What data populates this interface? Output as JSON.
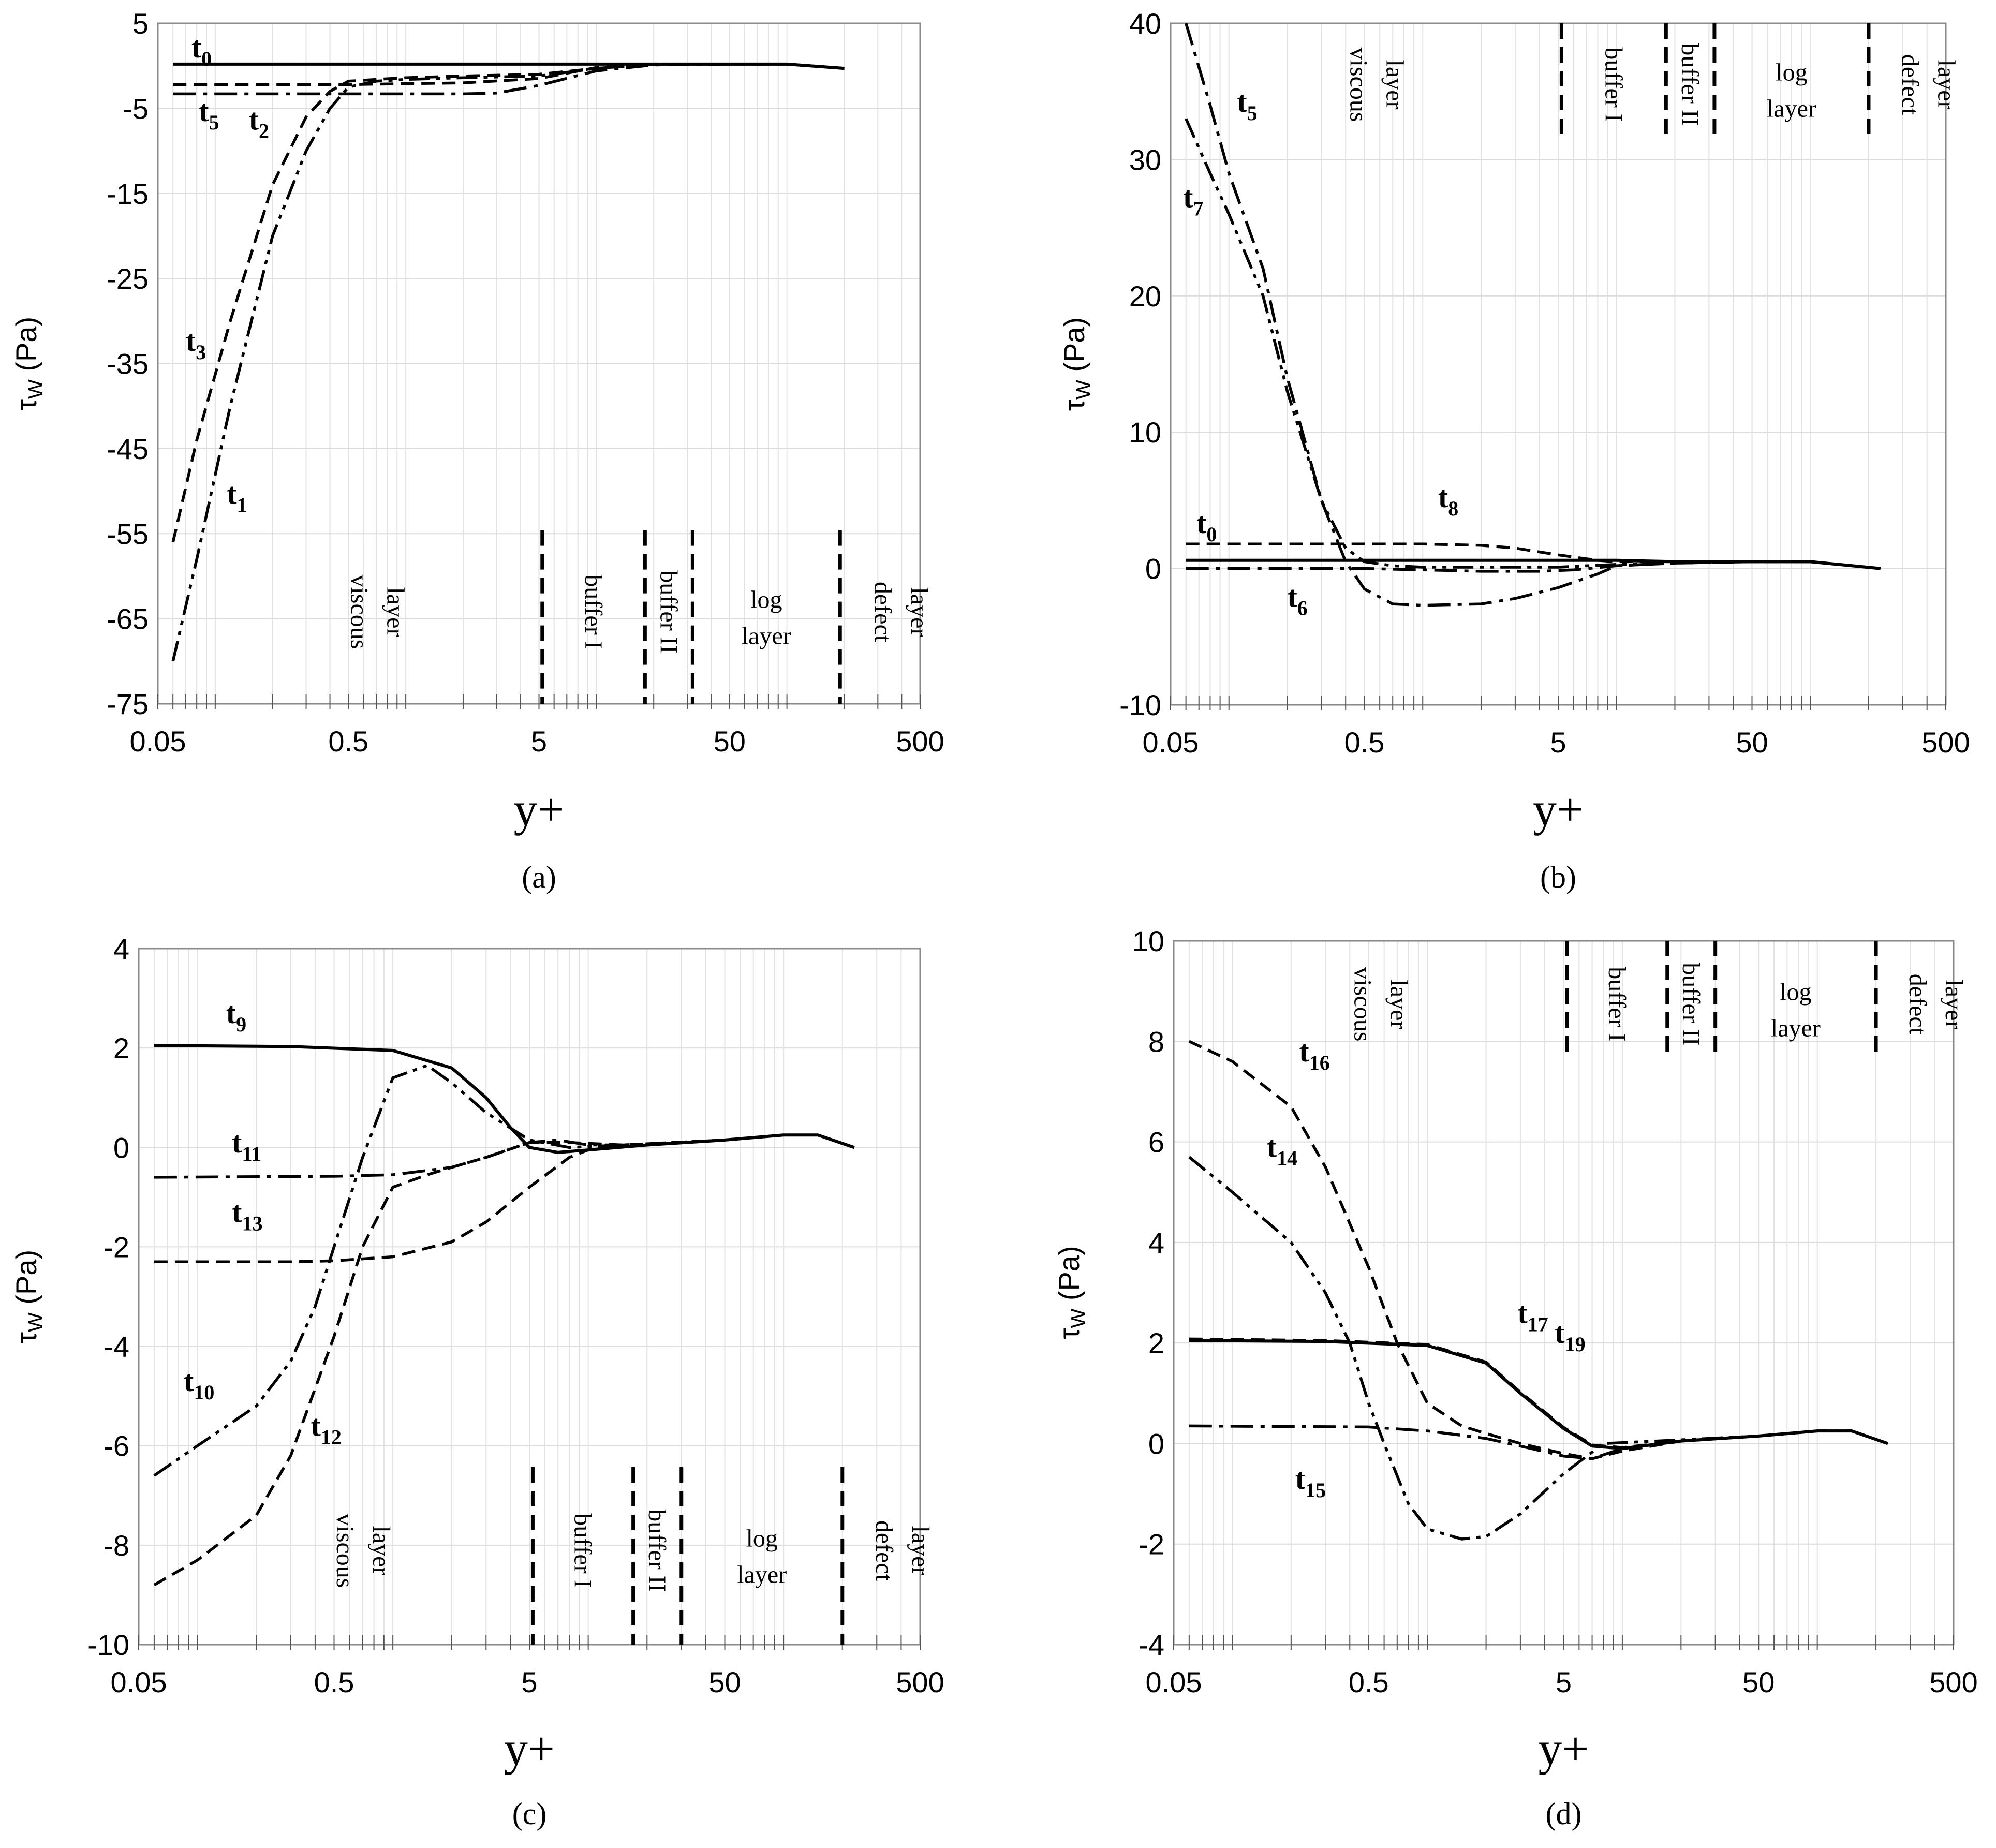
{
  "chart_data": [
    {
      "type": "line",
      "panel_label": "(a)",
      "xscale": "log",
      "xlim": [
        0.05,
        500
      ],
      "ylim": [
        -75,
        5
      ],
      "yticks": [
        5,
        -5,
        -15,
        -25,
        -35,
        -45,
        -55,
        -65,
        -75
      ],
      "xticks": [
        0.05,
        0.5,
        5,
        50,
        500
      ],
      "xtick_labels": [
        "0.05",
        "0.5",
        "5",
        "50",
        "500"
      ],
      "ylabel": "τW (Pa)",
      "ylabel_main": "τ",
      "ylabel_sub": "W",
      "ylabel_unit": " (Pa)",
      "xlabel": "y+",
      "region_dividers": [
        5.2,
        18,
        32,
        190
      ],
      "regions": [
        {
          "line1": "viscous",
          "line2": "layer"
        },
        {
          "line1": "buffer I",
          "line2": ""
        },
        {
          "line1": "buffer II",
          "line2": ""
        },
        {
          "line1": "log",
          "line2": "layer"
        },
        {
          "line1": "defect",
          "line2": "layer"
        }
      ],
      "series": [
        {
          "name": "t0",
          "style": "solid",
          "x": [
            0.06,
            0.5,
            1,
            5,
            10,
            20,
            50,
            100,
            200
          ],
          "y": [
            0.2,
            0.2,
            0.2,
            0.2,
            0.2,
            0.2,
            0.2,
            0.2,
            -0.3
          ]
        },
        {
          "name": "t5",
          "style": "dash",
          "x": [
            0.06,
            0.1,
            0.3,
            0.5,
            1,
            2,
            5,
            10,
            20,
            50,
            100,
            200
          ],
          "y": [
            -2.2,
            -2.2,
            -2.2,
            -2.2,
            -2.1,
            -2.0,
            -1.5,
            -0.2,
            0.2,
            0.2,
            0.2,
            -0.3
          ]
        },
        {
          "name": "t2",
          "style": "dashdot",
          "x": [
            0.06,
            0.1,
            0.3,
            0.5,
            1,
            2,
            3,
            5,
            10,
            20,
            50,
            100,
            200
          ],
          "y": [
            -3.3,
            -3.3,
            -3.3,
            -3.3,
            -3.3,
            -3.3,
            -3.2,
            -2.3,
            -0.6,
            0.1,
            0.2,
            0.2,
            -0.3
          ]
        },
        {
          "name": "t3",
          "style": "dash",
          "x": [
            0.06,
            0.08,
            0.12,
            0.2,
            0.3,
            0.4,
            0.5,
            0.7,
            1,
            2,
            5,
            10,
            20,
            50,
            100,
            200
          ],
          "y": [
            -56,
            -44,
            -30,
            -14,
            -6,
            -3,
            -1.8,
            -1.6,
            -1.4,
            -1.2,
            -1.0,
            -0.3,
            0.2,
            0.2,
            0.2,
            -0.3
          ]
        },
        {
          "name": "t1",
          "style": "dashdotdot",
          "x": [
            0.06,
            0.08,
            0.12,
            0.2,
            0.3,
            0.4,
            0.5,
            0.7,
            1,
            2,
            5,
            10,
            20,
            50,
            100,
            200
          ],
          "y": [
            -70,
            -58,
            -40,
            -20,
            -10,
            -5,
            -2.5,
            -1.8,
            -1.6,
            -1.4,
            -1.2,
            -0.3,
            0.2,
            0.2,
            0.2,
            -0.3
          ]
        }
      ],
      "annotations": [
        {
          "text": "t",
          "sub": "0",
          "x": 0.075,
          "y": 1.0
        },
        {
          "text": "t",
          "sub": "5",
          "x": 0.082,
          "y": -6.5
        },
        {
          "text": "t",
          "sub": "2",
          "x": 0.15,
          "y": -7.5
        },
        {
          "text": "t",
          "sub": "3",
          "x": 0.07,
          "y": -33.5
        },
        {
          "text": "t",
          "sub": "1",
          "x": 0.115,
          "y": -51.5
        }
      ]
    },
    {
      "type": "line",
      "panel_label": "(b)",
      "xscale": "log",
      "xlim": [
        0.05,
        500
      ],
      "ylim": [
        -10,
        40
      ],
      "yticks": [
        40,
        30,
        20,
        10,
        0,
        -10
      ],
      "xticks": [
        0.05,
        0.5,
        5,
        50,
        500
      ],
      "xtick_labels": [
        "0.05",
        "0.5",
        "5",
        "50",
        "500"
      ],
      "ylabel": "τW (Pa)",
      "ylabel_main": "τ",
      "ylabel_sub": "W",
      "ylabel_unit": " (Pa)",
      "xlabel": "y+",
      "region_dividers": [
        5.2,
        18,
        32,
        200
      ],
      "regions": [
        {
          "line1": "viscous",
          "line2": "layer"
        },
        {
          "line1": "buffer I",
          "line2": ""
        },
        {
          "line1": "buffer II",
          "line2": ""
        },
        {
          "line1": "log",
          "line2": "layer"
        },
        {
          "line1": "defect",
          "line2": "layer"
        }
      ],
      "series": [
        {
          "name": "t5",
          "style": "dashdot",
          "x": [
            0.06,
            0.08,
            0.1,
            0.15,
            0.2,
            0.3,
            0.4,
            0.5,
            0.7,
            1,
            2,
            3,
            5,
            8,
            10,
            20,
            50,
            100,
            230
          ],
          "y": [
            40,
            34,
            29,
            22,
            14,
            5,
            0.5,
            -1.5,
            -2.6,
            -2.7,
            -2.6,
            -2.2,
            -1.4,
            -0.4,
            0.2,
            0.4,
            0.5,
            0.5,
            0.0
          ]
        },
        {
          "name": "t7",
          "style": "dashdotdot",
          "x": [
            0.06,
            0.08,
            0.1,
            0.15,
            0.2,
            0.3,
            0.4,
            0.5,
            0.7,
            1,
            2,
            5,
            10,
            20,
            50,
            100,
            230
          ],
          "y": [
            33,
            29,
            26,
            20,
            13,
            5,
            1.5,
            0.5,
            0.2,
            0.1,
            0.1,
            0.1,
            0.3,
            0.4,
            0.5,
            0.5,
            0.0
          ]
        },
        {
          "name": "t8",
          "style": "dash",
          "x": [
            0.06,
            0.5,
            1,
            2,
            3,
            5,
            8,
            10,
            20,
            50,
            100,
            230
          ],
          "y": [
            1.8,
            1.8,
            1.8,
            1.7,
            1.5,
            1.0,
            0.6,
            0.5,
            0.5,
            0.5,
            0.5,
            0.0
          ]
        },
        {
          "name": "t0",
          "style": "solid",
          "x": [
            0.06,
            1,
            5,
            10,
            20,
            50,
            100,
            230
          ],
          "y": [
            0.6,
            0.6,
            0.6,
            0.6,
            0.5,
            0.5,
            0.5,
            0.0
          ]
        },
        {
          "name": "t6",
          "style": "dashdot",
          "x": [
            0.06,
            0.5,
            1,
            2,
            4,
            6,
            10,
            20,
            50,
            100,
            230
          ],
          "y": [
            0.0,
            0.0,
            -0.1,
            -0.2,
            -0.2,
            -0.1,
            0.2,
            0.4,
            0.5,
            0.5,
            0.0
          ]
        }
      ],
      "annotations": [
        {
          "text": "t",
          "sub": "5",
          "x": 0.11,
          "y": 33.5
        },
        {
          "text": "t",
          "sub": "7",
          "x": 0.058,
          "y": 26.5
        },
        {
          "text": "t",
          "sub": "8",
          "x": 1.2,
          "y": 4.5
        },
        {
          "text": "t",
          "sub": "0",
          "x": 0.068,
          "y": 2.6
        },
        {
          "text": "t",
          "sub": "6",
          "x": 0.2,
          "y": -2.8
        }
      ]
    },
    {
      "type": "line",
      "panel_label": "(c)",
      "xscale": "log",
      "xlim": [
        0.05,
        500
      ],
      "ylim": [
        -10,
        4
      ],
      "yticks": [
        4,
        2,
        0,
        -2,
        -4,
        -6,
        -8,
        -10
      ],
      "xticks": [
        0.05,
        0.5,
        5,
        50,
        500
      ],
      "xtick_labels": [
        "0.05",
        "0.5",
        "5",
        "50",
        "500"
      ],
      "ylabel": "τW (Pa)",
      "ylabel_main": "τ",
      "ylabel_sub": "W",
      "ylabel_unit": " (Pa)",
      "xlabel": "y+",
      "region_dividers": [
        5.2,
        17,
        30,
        200
      ],
      "regions": [
        {
          "line1": "viscous",
          "line2": "layer"
        },
        {
          "line1": "buffer I",
          "line2": ""
        },
        {
          "line1": "buffer II",
          "line2": ""
        },
        {
          "line1": "log",
          "line2": "layer"
        },
        {
          "line1": "defect",
          "line2": "layer"
        }
      ],
      "series": [
        {
          "name": "t9",
          "style": "solid",
          "x": [
            0.06,
            0.3,
            1,
            2,
            3,
            4,
            5,
            7,
            10,
            20,
            50,
            100,
            150,
            230
          ],
          "y": [
            2.05,
            2.03,
            1.95,
            1.6,
            1.0,
            0.4,
            0.0,
            -0.1,
            -0.05,
            0.05,
            0.15,
            0.25,
            0.25,
            0.0
          ]
        },
        {
          "name": "t10",
          "style": "dashdotdot",
          "x": [
            0.06,
            0.1,
            0.2,
            0.3,
            0.4,
            0.5,
            0.7,
            1,
            1.5,
            2,
            3,
            5,
            8,
            15,
            50,
            100,
            150,
            230
          ],
          "y": [
            -6.6,
            -6.0,
            -5.2,
            -4.3,
            -3.2,
            -2.0,
            -0.2,
            1.4,
            1.65,
            1.3,
            0.7,
            0.15,
            0.0,
            0.05,
            0.15,
            0.25,
            0.25,
            0.0
          ]
        },
        {
          "name": "t11",
          "style": "dashdot",
          "x": [
            0.06,
            0.5,
            1,
            2,
            3,
            5,
            7,
            10,
            20,
            50,
            100,
            150,
            230
          ],
          "y": [
            -0.6,
            -0.58,
            -0.55,
            -0.4,
            -0.2,
            0.1,
            0.15,
            0.05,
            0.05,
            0.15,
            0.25,
            0.25,
            0.0
          ]
        },
        {
          "name": "t12",
          "style": "dash",
          "x": [
            0.06,
            0.1,
            0.2,
            0.3,
            0.5,
            0.7,
            1,
            1.5,
            2,
            3,
            5,
            8,
            15,
            50,
            100,
            150,
            230
          ],
          "y": [
            -8.8,
            -8.3,
            -7.4,
            -6.2,
            -3.8,
            -2.0,
            -0.8,
            -0.55,
            -0.4,
            -0.2,
            0.1,
            0.1,
            0.05,
            0.15,
            0.25,
            0.25,
            0.0
          ]
        },
        {
          "name": "t13",
          "style": "dash",
          "x": [
            0.06,
            0.3,
            0.5,
            1,
            2,
            3,
            5,
            8,
            10,
            20,
            50,
            100,
            150,
            230
          ],
          "y": [
            -2.3,
            -2.3,
            -2.28,
            -2.2,
            -1.9,
            -1.5,
            -0.8,
            -0.2,
            -0.05,
            0.05,
            0.15,
            0.25,
            0.25,
            0.0
          ]
        }
      ],
      "annotations": [
        {
          "text": "t",
          "sub": "9",
          "x": 0.14,
          "y": 2.5
        },
        {
          "text": "t",
          "sub": "11",
          "x": 0.15,
          "y": -0.1
        },
        {
          "text": "t",
          "sub": "13",
          "x": 0.15,
          "y": -1.5
        },
        {
          "text": "t",
          "sub": "10",
          "x": 0.085,
          "y": -4.9
        },
        {
          "text": "t",
          "sub": "12",
          "x": 0.38,
          "y": -5.8
        }
      ]
    },
    {
      "type": "line",
      "panel_label": "(d)",
      "xscale": "log",
      "xlim": [
        0.05,
        500
      ],
      "ylim": [
        -4,
        10
      ],
      "yticks": [
        10,
        8,
        6,
        4,
        2,
        0,
        -2,
        -4
      ],
      "xticks": [
        0.05,
        0.5,
        5,
        50,
        500
      ],
      "xtick_labels": [
        "0.05",
        "0.5",
        "5",
        "50",
        "500"
      ],
      "ylabel": "τW (Pa)",
      "ylabel_main": "τ",
      "ylabel_sub": "W",
      "ylabel_unit": " (Pa)",
      "xlabel": "y+",
      "region_dividers": [
        5.2,
        17,
        30,
        200
      ],
      "regions": [
        {
          "line1": "viscous",
          "line2": "layer"
        },
        {
          "line1": "buffer I",
          "line2": ""
        },
        {
          "line1": "buffer II",
          "line2": ""
        },
        {
          "line1": "log",
          "line2": "layer"
        },
        {
          "line1": "defect",
          "line2": "layer"
        }
      ],
      "series": [
        {
          "name": "t16",
          "style": "dash",
          "x": [
            0.06,
            0.1,
            0.2,
            0.3,
            0.5,
            0.7,
            1,
            1.5,
            2,
            3,
            5,
            7,
            10,
            20,
            50,
            100,
            150,
            230
          ],
          "y": [
            8.0,
            7.6,
            6.7,
            5.5,
            3.5,
            2.0,
            0.8,
            0.35,
            0.2,
            0.0,
            -0.2,
            -0.3,
            -0.15,
            0.05,
            0.15,
            0.25,
            0.25,
            0.0
          ]
        },
        {
          "name": "t14",
          "style": "dashdotdot",
          "x": [
            0.06,
            0.1,
            0.2,
            0.3,
            0.4,
            0.5,
            0.6,
            0.8,
            1,
            1.5,
            2,
            3,
            5,
            8,
            15,
            50,
            100,
            150,
            230
          ],
          "y": [
            5.7,
            5.0,
            4.0,
            3.0,
            2.0,
            0.8,
            0.0,
            -1.2,
            -1.7,
            -1.9,
            -1.85,
            -1.4,
            -0.6,
            0.0,
            0.05,
            0.15,
            0.25,
            0.25,
            0.0
          ]
        },
        {
          "name": "t17",
          "style": "solid",
          "x": [
            0.06,
            0.3,
            1,
            2,
            3,
            5,
            7,
            10,
            20,
            50,
            100,
            150,
            230
          ],
          "y": [
            2.05,
            2.03,
            1.95,
            1.6,
            1.0,
            0.3,
            -0.05,
            -0.1,
            0.05,
            0.15,
            0.25,
            0.25,
            0.0
          ]
        },
        {
          "name": "t19",
          "style": "dash",
          "x": [
            0.06,
            0.3,
            1,
            2,
            3,
            5,
            7,
            10,
            20,
            50,
            100,
            150,
            230
          ],
          "y": [
            2.08,
            2.05,
            1.97,
            1.62,
            1.02,
            0.32,
            -0.03,
            -0.08,
            0.05,
            0.15,
            0.25,
            0.25,
            0.0
          ]
        },
        {
          "name": "t15",
          "style": "dashdot",
          "x": [
            0.06,
            0.5,
            1,
            2,
            3,
            5,
            7,
            10,
            20,
            50,
            100,
            150,
            230
          ],
          "y": [
            0.35,
            0.33,
            0.25,
            0.1,
            -0.05,
            -0.25,
            -0.3,
            -0.1,
            0.05,
            0.15,
            0.25,
            0.25,
            0.0
          ]
        }
      ],
      "annotations": [
        {
          "text": "t",
          "sub": "16",
          "x": 0.22,
          "y": 7.6
        },
        {
          "text": "t",
          "sub": "14",
          "x": 0.15,
          "y": 5.7
        },
        {
          "text": "t",
          "sub": "17",
          "x": 2.9,
          "y": 2.4
        },
        {
          "text": "t",
          "sub": "19",
          "x": 4.5,
          "y": 2.0
        },
        {
          "text": "t",
          "sub": "15",
          "x": 0.21,
          "y": -0.9
        }
      ]
    }
  ]
}
